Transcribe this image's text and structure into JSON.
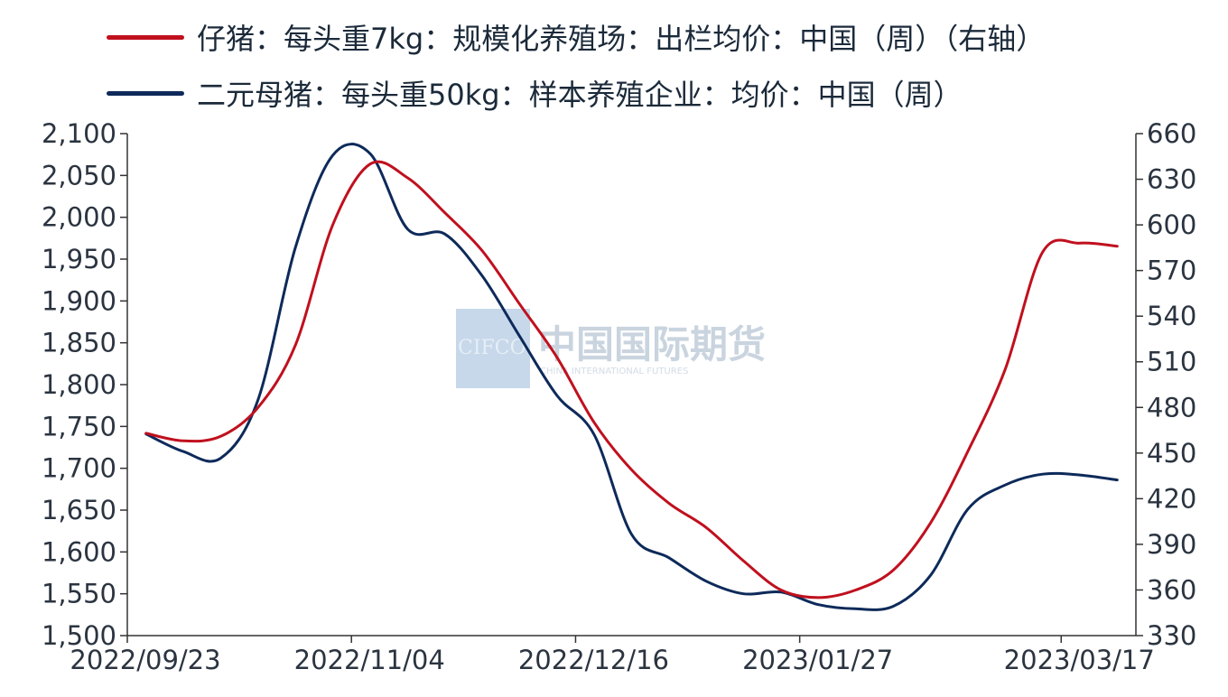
{
  "chart_data": {
    "type": "line",
    "x": [
      "2022/09/23",
      "2022/09/30",
      "2022/10/07",
      "2022/10/14",
      "2022/10/21",
      "2022/10/28",
      "2022/11/04",
      "2022/11/11",
      "2022/11/18",
      "2022/11/25",
      "2022/12/02",
      "2022/12/09",
      "2022/12/16",
      "2022/12/23",
      "2022/12/30",
      "2023/01/06",
      "2023/01/13",
      "2023/01/20",
      "2023/01/27",
      "2023/02/03",
      "2023/02/10",
      "2023/02/17",
      "2023/02/24",
      "2023/03/03",
      "2023/03/10",
      "2023/03/17",
      "2023/03/24"
    ],
    "x_tick_labels": [
      "2022/09/23",
      "2022/11/04",
      "2022/12/16",
      "2023/01/27",
      "2023/03/17"
    ],
    "series": [
      {
        "name": "仔猪：每头重7kg：规模化养殖场：出栏均价：中国（周）（右轴）",
        "axis": "right",
        "color": "#c0101e",
        "values": [
          463,
          458,
          461,
          480,
          521,
          600,
          640,
          631,
          608,
          583,
          548,
          513,
          470,
          439,
          417,
          401,
          379,
          360,
          355,
          360,
          373,
          404,
          451,
          505,
          582,
          588,
          586
        ]
      },
      {
        "name": "二元母猪：每头重50kg：样本养殖企业：均价：中国（周）",
        "axis": "left",
        "color": "#0d2a5a",
        "values": [
          1741,
          1720,
          1712,
          1782,
          1964,
          2074,
          2076,
          1986,
          1980,
          1930,
          1858,
          1787,
          1740,
          1621,
          1593,
          1565,
          1550,
          1552,
          1537,
          1532,
          1535,
          1572,
          1651,
          1680,
          1693,
          1692,
          1686
        ]
      }
    ],
    "y_left": {
      "lim": [
        1500,
        2100
      ],
      "ticks": [
        "1,500",
        "1,550",
        "1,600",
        "1,650",
        "1,700",
        "1,750",
        "1,800",
        "1,850",
        "1,900",
        "1,950",
        "2,000",
        "2,050",
        "2,100"
      ]
    },
    "y_right": {
      "lim": [
        330,
        660
      ],
      "ticks": [
        "330",
        "360",
        "390",
        "420",
        "450",
        "480",
        "510",
        "540",
        "570",
        "600",
        "630",
        "660"
      ]
    },
    "grid": false,
    "legend": "top"
  },
  "watermark": {
    "cn": "中国国际期货",
    "en": "CHINA INTERNATIONAL FUTURES",
    "logo": "CIFCO"
  }
}
